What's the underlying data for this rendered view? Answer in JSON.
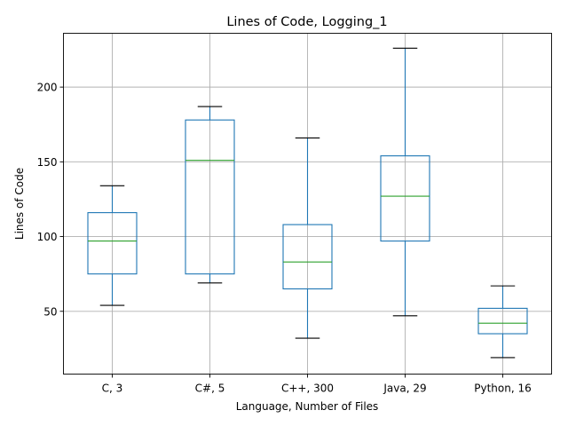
{
  "chart_data": {
    "type": "box",
    "title": "Lines of Code, Logging_1",
    "xlabel": "Language, Number of Files",
    "ylabel": "Lines of Code",
    "ylim": [
      8,
      236
    ],
    "yticks": [
      50,
      100,
      150,
      200
    ],
    "grid": true,
    "categories": [
      "C, 3",
      "C#, 5",
      "C++, 300",
      "Java, 29",
      "Python, 16"
    ],
    "boxes": [
      {
        "label": "C, 3",
        "whisker_low": 54,
        "q1": 75,
        "median": 97,
        "q3": 116,
        "whisker_high": 134
      },
      {
        "label": "C#, 5",
        "whisker_low": 69,
        "q1": 75,
        "median": 151,
        "q3": 178,
        "whisker_high": 187
      },
      {
        "label": "C++, 300",
        "whisker_low": 32,
        "q1": 65,
        "median": 83,
        "q3": 108,
        "whisker_high": 166
      },
      {
        "label": "Java, 29",
        "whisker_low": 47,
        "q1": 97,
        "median": 127,
        "q3": 154,
        "whisker_high": 226
      },
      {
        "label": "Python, 16",
        "whisker_low": 19,
        "q1": 35,
        "median": 42,
        "q3": 52,
        "whisker_high": 67
      }
    ],
    "colors": {
      "box": "#1f77b4",
      "median": "#2ca02c",
      "cap": "#000000",
      "grid": "#b0b0b0",
      "axes": "#000000"
    }
  }
}
